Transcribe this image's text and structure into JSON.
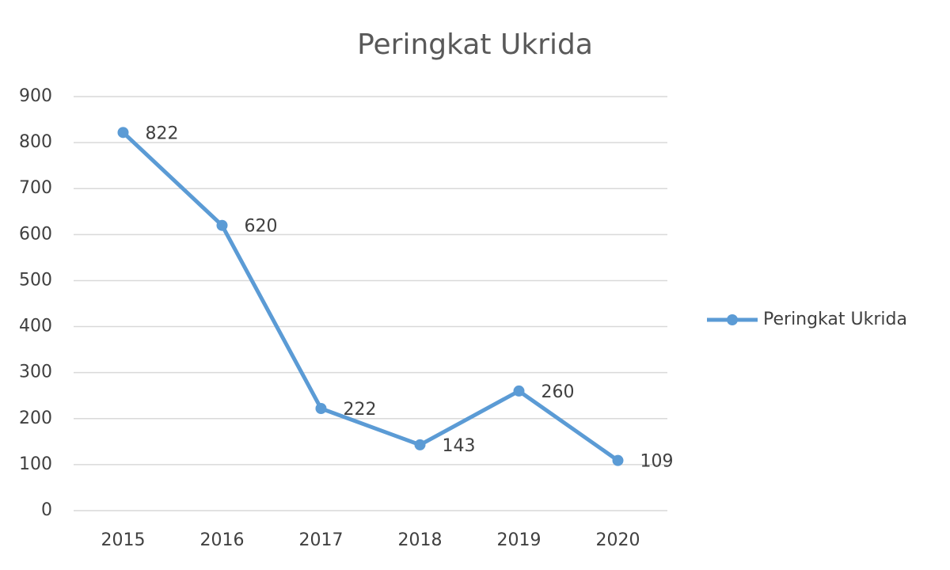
{
  "chart_data": {
    "type": "line",
    "title": "Peringkat Ukrida",
    "categories": [
      "2015",
      "2016",
      "2017",
      "2018",
      "2019",
      "2020"
    ],
    "series": [
      {
        "name": "Peringkat Ukrida",
        "color": "#5b9bd5",
        "values": [
          822,
          620,
          222,
          143,
          260,
          109
        ]
      }
    ],
    "ylim": [
      0,
      900
    ],
    "yticks": [
      0,
      100,
      200,
      300,
      400,
      500,
      600,
      700,
      800,
      900
    ],
    "grid": true,
    "legend": "right",
    "data_labels": true
  }
}
